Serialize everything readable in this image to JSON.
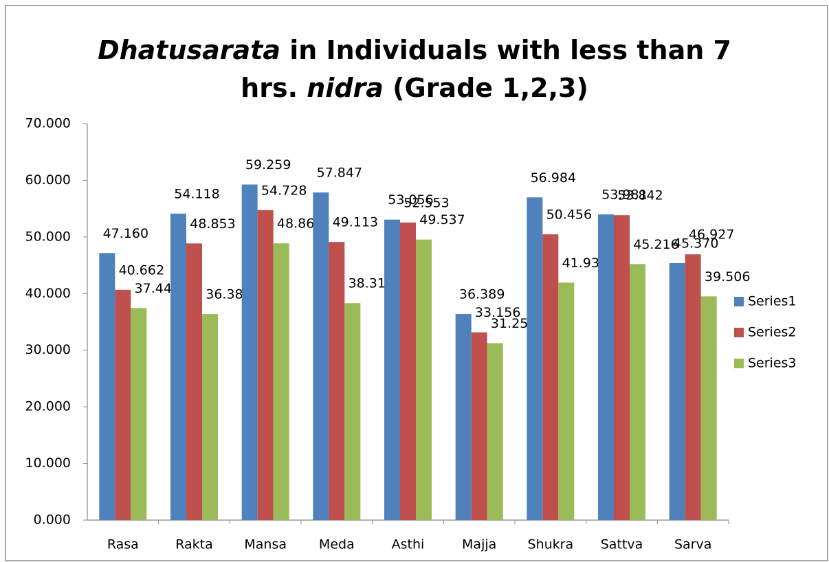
{
  "chart_data": {
    "type": "bar",
    "title": [
      [
        {
          "text": "Dhatusarata",
          "italic": true
        },
        {
          "text": " in Individuals with less than 7",
          "italic": false
        }
      ],
      [
        {
          "text": "hrs. ",
          "italic": false
        },
        {
          "text": "nidra",
          "italic": true
        },
        {
          "text": " (Grade 1,2,3)",
          "italic": false
        }
      ]
    ],
    "categories": [
      "Rasa",
      "Rakta",
      "Mansa",
      "Meda",
      "Asthi",
      "Majja",
      "Shukra",
      "Sattva",
      "Sarva"
    ],
    "series": [
      {
        "name": "Series1",
        "color": "#4f81bd",
        "values": [
          47.16,
          54.118,
          59.259,
          57.847,
          53.056,
          36.389,
          56.984,
          53.981,
          45.37
        ],
        "value_labels": [
          "47.160",
          "54.118",
          "59.259",
          "57.847",
          "53.056",
          "36.389",
          "56.984",
          "53.981",
          "45.370"
        ]
      },
      {
        "name": "Series2",
        "color": "#c0504d",
        "values": [
          40.662,
          48.853,
          54.728,
          49.113,
          52.553,
          33.156,
          50.456,
          53.842,
          46.927
        ],
        "value_labels": [
          "40.662",
          "48.853",
          "54.728",
          "49.113",
          "52.553",
          "33.156",
          "50.456",
          "53.842",
          "46.927"
        ]
      },
      {
        "name": "Series3",
        "color": "#9bbb59",
        "values": [
          37.449,
          36.383,
          48.868,
          38.31,
          49.537,
          31.25,
          41.931,
          45.216,
          39.506
        ],
        "value_labels": [
          "37.449",
          "36.383",
          "48.868",
          "38.310",
          "49.537",
          "31.250",
          "41.931",
          "45.216",
          "39.506"
        ]
      }
    ],
    "ylim": [
      0,
      70
    ],
    "yticks": [
      {
        "value": 0,
        "label": "0.000"
      },
      {
        "value": 10,
        "label": "10.000"
      },
      {
        "value": 20,
        "label": "20.000"
      },
      {
        "value": 30,
        "label": "30.000"
      },
      {
        "value": 40,
        "label": "40.000"
      },
      {
        "value": 50,
        "label": "50.000"
      },
      {
        "value": 60,
        "label": "60.000"
      },
      {
        "value": 70,
        "label": "70.000"
      }
    ],
    "grid": false,
    "legend": "right"
  }
}
